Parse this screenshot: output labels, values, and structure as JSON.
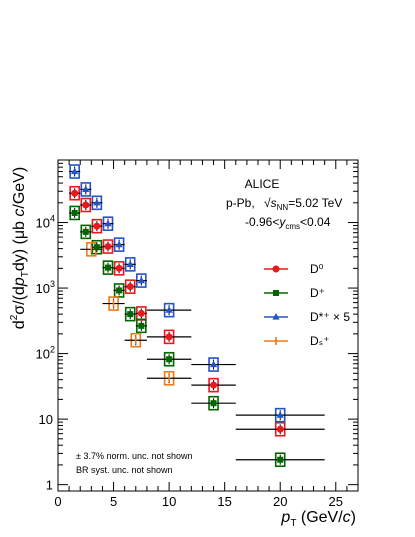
{
  "chart_data": {
    "type": "scatter",
    "experiment": "ALICE",
    "system": "p-Pb,",
    "energy": {
      "prefix": "√",
      "var": "s",
      "sub": "NN",
      "value": "=5.02 TeV"
    },
    "rapidity": {
      "lo": "-0.96<",
      "var": "y",
      "sub": "cms",
      "hi": "<0.04"
    },
    "ylabel": {
      "pre": "d",
      "sup1": "2",
      "mid1": "σ/(d",
      "var": "p",
      "sub": "T",
      "mid2": "dy) (μb ",
      "c": "c",
      "post": "/GeV)"
    },
    "xlabel": {
      "var": "p",
      "sub": "T",
      "unit": " (GeV/",
      "c": "c",
      "close": ")"
    },
    "xlim": [
      0,
      27
    ],
    "ylim": [
      0.8,
      90000
    ],
    "yscale": "log",
    "xticks": [
      "0",
      "5",
      "10",
      "15",
      "20",
      "25"
    ],
    "yticks": [
      "1",
      "10",
      "10²",
      "10³",
      "10⁴"
    ],
    "notes": [
      "± 3.7% norm. unc. not shown",
      "BR syst. unc. not shown"
    ],
    "series": [
      {
        "name": "D⁰",
        "color": "#e8191d",
        "marker": "circle",
        "points": [
          {
            "x": 1.5,
            "xlo": 1,
            "xhi": 2,
            "y": 28000
          },
          {
            "x": 2.5,
            "xlo": 2,
            "xhi": 3,
            "y": 18500
          },
          {
            "x": 3.5,
            "xlo": 3,
            "xhi": 4,
            "y": 8800
          },
          {
            "x": 4.5,
            "xlo": 4,
            "xhi": 5,
            "y": 4300
          },
          {
            "x": 5.5,
            "xlo": 5,
            "xhi": 6,
            "y": 2000
          },
          {
            "x": 6.5,
            "xlo": 6,
            "xhi": 7,
            "y": 1050
          },
          {
            "x": 7.5,
            "xlo": 7,
            "xhi": 8,
            "y": 410
          },
          {
            "x": 10,
            "xlo": 8,
            "xhi": 12,
            "y": 180
          },
          {
            "x": 14,
            "xlo": 12,
            "xhi": 16,
            "y": 33
          },
          {
            "x": 20,
            "xlo": 16,
            "xhi": 24,
            "y": 7
          }
        ]
      },
      {
        "name": "D⁺",
        "color": "#006600",
        "marker": "square",
        "points": [
          {
            "x": 1.5,
            "xlo": 1,
            "xhi": 2,
            "y": 14000
          },
          {
            "x": 2.5,
            "xlo": 2,
            "xhi": 3,
            "y": 7200
          },
          {
            "x": 3.5,
            "xlo": 3,
            "xhi": 4,
            "y": 4200
          },
          {
            "x": 4.5,
            "xlo": 4,
            "xhi": 5,
            "y": 2050
          },
          {
            "x": 5.5,
            "xlo": 5,
            "xhi": 6,
            "y": 920
          },
          {
            "x": 6.5,
            "xlo": 6,
            "xhi": 7,
            "y": 400
          },
          {
            "x": 7.5,
            "xlo": 7,
            "xhi": 8,
            "y": 265
          },
          {
            "x": 10,
            "xlo": 8,
            "xhi": 12,
            "y": 82
          },
          {
            "x": 14,
            "xlo": 12,
            "xhi": 16,
            "y": 17.5
          },
          {
            "x": 20,
            "xlo": 16,
            "xhi": 24,
            "y": 2.4
          }
        ]
      },
      {
        "name": "D*⁺ × 5",
        "color": "#2353c9",
        "marker": "triangle",
        "points": [
          {
            "x": 1.5,
            "xlo": 1,
            "xhi": 2,
            "y": 60000
          },
          {
            "x": 2.5,
            "xlo": 2,
            "xhi": 3,
            "y": 32000
          },
          {
            "x": 3.5,
            "xlo": 3,
            "xhi": 4,
            "y": 20000
          },
          {
            "x": 4.5,
            "xlo": 4,
            "xhi": 5,
            "y": 9600
          },
          {
            "x": 5.5,
            "xlo": 5,
            "xhi": 6,
            "y": 4600
          },
          {
            "x": 6.5,
            "xlo": 6,
            "xhi": 7,
            "y": 2300
          },
          {
            "x": 7.5,
            "xlo": 7,
            "xhi": 8,
            "y": 1300
          },
          {
            "x": 10,
            "xlo": 8,
            "xhi": 12,
            "y": 460
          },
          {
            "x": 14,
            "xlo": 12,
            "xhi": 16,
            "y": 68
          },
          {
            "x": 20,
            "xlo": 16,
            "xhi": 24,
            "y": 11.5
          }
        ]
      },
      {
        "name": "Dₛ⁺",
        "color": "#f07818",
        "marker": "cross",
        "points": [
          {
            "x": 3,
            "xlo": 2,
            "xhi": 4,
            "y": 3900
          },
          {
            "x": 5,
            "xlo": 4,
            "xhi": 6,
            "y": 580
          },
          {
            "x": 7,
            "xlo": 6,
            "xhi": 8,
            "y": 160
          },
          {
            "x": 10,
            "xlo": 8,
            "xhi": 12,
            "y": 42
          }
        ]
      }
    ]
  }
}
